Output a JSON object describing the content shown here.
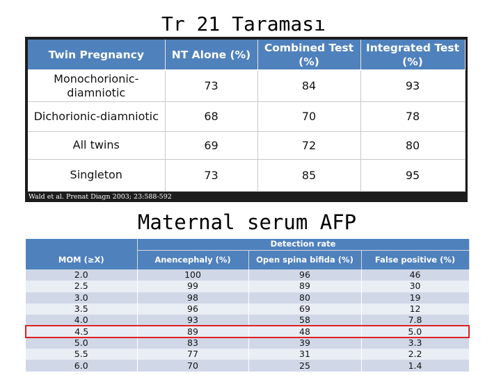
{
  "title1": "Tr 21 Taraması",
  "title2": "Maternal serum AFP",
  "twin_table": {
    "headers": [
      "Twin Pregnancy",
      "NT Alone (%)",
      "Combined Test (%)",
      "Integrated Test (%)"
    ],
    "rows": [
      {
        "label": "Monochorionic-diamniotic",
        "values": [
          "73",
          "84",
          "93"
        ]
      },
      {
        "label": "Dichorionic-diamniotic",
        "values": [
          "68",
          "70",
          "78"
        ]
      },
      {
        "label": "All twins",
        "values": [
          "69",
          "72",
          "80"
        ]
      },
      {
        "label": "Singleton",
        "values": [
          "73",
          "85",
          "95"
        ]
      }
    ],
    "source": "Wald et al. Prenat Diagn 2003; 23:588-592"
  },
  "afp_table": {
    "group_header": "Detection rate",
    "headers": [
      "MOM (≥X)",
      "Anencephaly (%)",
      "Open spina bifida (%)",
      "False positive (%)"
    ],
    "rows": [
      [
        "2.0",
        "100",
        "96",
        "46"
      ],
      [
        "2.5",
        "99",
        "89",
        "30"
      ],
      [
        "3.0",
        "98",
        "80",
        "19"
      ],
      [
        "3.5",
        "96",
        "69",
        "12"
      ],
      [
        "4.0",
        "93",
        "58",
        "7.8"
      ],
      [
        "4.5",
        "89",
        "48",
        "5.0"
      ],
      [
        "5.0",
        "83",
        "39",
        "3.3"
      ],
      [
        "5.5",
        "77",
        "31",
        "2.2"
      ],
      [
        "6.0",
        "70",
        "25",
        "1.4"
      ]
    ],
    "highlight_color": "#e02020",
    "header_color": "#4f81bd"
  }
}
